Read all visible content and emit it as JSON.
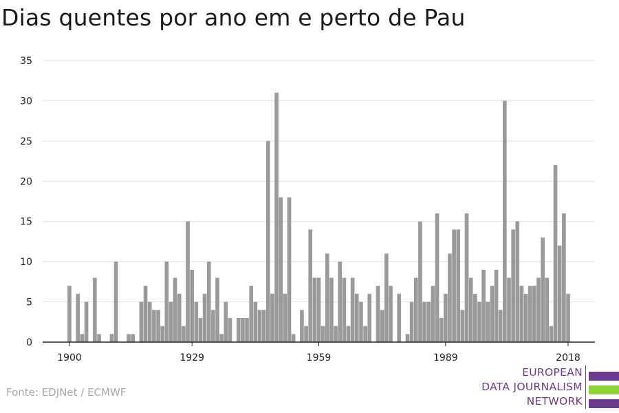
{
  "title": "Dias quentes por ano em e perto de Pau",
  "source": "Fonte: EDJNet / ECMWF",
  "logo": {
    "lines": [
      "EUROPEAN",
      "DATA JOURNALISM",
      "NETWORK"
    ],
    "colors": [
      "#6b3a8e",
      "#8fd13a",
      "#6b3a8e"
    ]
  },
  "chart_data": {
    "type": "bar",
    "x": [
      1900,
      1901,
      1902,
      1903,
      1904,
      1905,
      1906,
      1907,
      1908,
      1909,
      1910,
      1911,
      1912,
      1913,
      1914,
      1915,
      1916,
      1917,
      1918,
      1919,
      1920,
      1921,
      1922,
      1923,
      1924,
      1925,
      1926,
      1927,
      1928,
      1929,
      1930,
      1931,
      1932,
      1933,
      1934,
      1935,
      1936,
      1937,
      1938,
      1939,
      1940,
      1941,
      1942,
      1943,
      1944,
      1945,
      1946,
      1947,
      1948,
      1949,
      1950,
      1951,
      1952,
      1953,
      1954,
      1955,
      1956,
      1957,
      1958,
      1959,
      1960,
      1961,
      1962,
      1963,
      1964,
      1965,
      1966,
      1967,
      1968,
      1969,
      1970,
      1971,
      1972,
      1973,
      1974,
      1975,
      1976,
      1977,
      1978,
      1979,
      1980,
      1981,
      1982,
      1983,
      1984,
      1985,
      1986,
      1987,
      1988,
      1989,
      1990,
      1991,
      1992,
      1993,
      1994,
      1995,
      1996,
      1997,
      1998,
      1999,
      2000,
      2001,
      2002,
      2003,
      2004,
      2005,
      2006,
      2007,
      2008,
      2009,
      2010,
      2011,
      2012,
      2013,
      2014,
      2015,
      2016,
      2017,
      2018
    ],
    "values": [
      7,
      0,
      6,
      1,
      5,
      0,
      8,
      1,
      0,
      0,
      1,
      10,
      0,
      0,
      1,
      1,
      0,
      5,
      7,
      5,
      4,
      4,
      2,
      10,
      5,
      8,
      6,
      2,
      15,
      9,
      5,
      3,
      6,
      10,
      4,
      8,
      1,
      5,
      3,
      0,
      3,
      3,
      3,
      7,
      5,
      4,
      4,
      25,
      6,
      31,
      18,
      6,
      18,
      1,
      0,
      4,
      2,
      14,
      8,
      8,
      2,
      11,
      8,
      2,
      10,
      8,
      2,
      8,
      6,
      5,
      2,
      6,
      0,
      7,
      4,
      11,
      7,
      0,
      6,
      0,
      1,
      5,
      8,
      15,
      5,
      5,
      7,
      16,
      3,
      6,
      11,
      14,
      14,
      4,
      16,
      8,
      6,
      5,
      9,
      5,
      7,
      9,
      4,
      30,
      8,
      14,
      15,
      7,
      6,
      7,
      7,
      8,
      13,
      8,
      2,
      22,
      12,
      16,
      6
    ],
    "xticks": [
      1900,
      1929,
      1959,
      1989,
      2018
    ],
    "yticks": [
      0,
      5,
      10,
      15,
      20,
      25,
      30,
      35
    ],
    "ylim": [
      0,
      35
    ],
    "xlim": [
      1900,
      2018
    ],
    "xlabel": "",
    "ylabel": "",
    "grid": true,
    "bar_color": "#9a9a9a",
    "grid_color": "#dddddd",
    "axis_color": "#222222"
  }
}
